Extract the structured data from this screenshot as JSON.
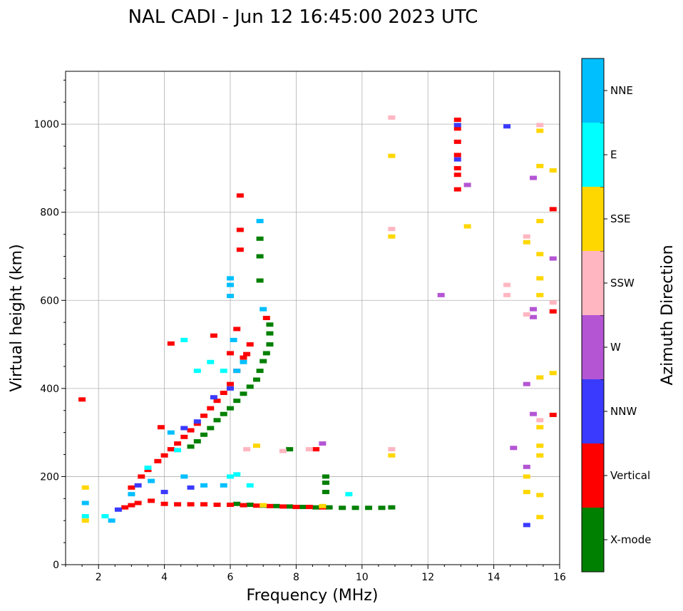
{
  "chart_data": {
    "type": "scatter",
    "title": "NAL CADI - Jun 12 16:45:00 2023 UTC",
    "xlabel": "Frequency (MHz)",
    "ylabel": "Virtual height (km)",
    "xlim": [
      1,
      16
    ],
    "ylim": [
      0,
      1120
    ],
    "xticks": [
      2,
      4,
      6,
      8,
      10,
      12,
      14,
      16
    ],
    "yticks": [
      0,
      200,
      400,
      600,
      800,
      1000
    ],
    "grid": true,
    "colorbar": {
      "title": "Azimuth Direction",
      "categories": [
        {
          "name": "X-mode",
          "color": "#008000"
        },
        {
          "name": "Vertical",
          "color": "#ff0000"
        },
        {
          "name": "NNW",
          "color": "#3a3aff"
        },
        {
          "name": "W",
          "color": "#b455d4"
        },
        {
          "name": "SSW",
          "color": "#ffb6c1"
        },
        {
          "name": "SSE",
          "color": "#ffd700"
        },
        {
          "name": "E",
          "color": "#00ffff"
        },
        {
          "name": "NNE",
          "color": "#00bfff"
        }
      ]
    },
    "series": [
      {
        "name": "X-mode",
        "points": [
          [
            4.8,
            268
          ],
          [
            5.0,
            280
          ],
          [
            5.2,
            295
          ],
          [
            5.4,
            310
          ],
          [
            5.6,
            328
          ],
          [
            5.8,
            342
          ],
          [
            6.0,
            355
          ],
          [
            6.2,
            372
          ],
          [
            6.4,
            388
          ],
          [
            6.6,
            404
          ],
          [
            6.8,
            420
          ],
          [
            6.9,
            440
          ],
          [
            7.0,
            462
          ],
          [
            7.1,
            480
          ],
          [
            7.2,
            500
          ],
          [
            7.2,
            525
          ],
          [
            7.2,
            545
          ],
          [
            6.9,
            645
          ],
          [
            6.9,
            700
          ],
          [
            6.9,
            740
          ],
          [
            6.2,
            138
          ],
          [
            6.6,
            136
          ],
          [
            7.0,
            134
          ],
          [
            7.4,
            133
          ],
          [
            7.8,
            132
          ],
          [
            8.2,
            131
          ],
          [
            8.6,
            130
          ],
          [
            9.0,
            130
          ],
          [
            9.4,
            129
          ],
          [
            9.8,
            129
          ],
          [
            10.2,
            129
          ],
          [
            10.6,
            129
          ],
          [
            10.9,
            130
          ],
          [
            8.9,
            200
          ],
          [
            8.9,
            186
          ],
          [
            8.9,
            165
          ],
          [
            7.8,
            262
          ]
        ]
      },
      {
        "name": "Vertical",
        "points": [
          [
            1.5,
            375
          ],
          [
            2.8,
            130
          ],
          [
            3.0,
            135
          ],
          [
            3.2,
            140
          ],
          [
            3.6,
            145
          ],
          [
            4.0,
            138
          ],
          [
            4.4,
            137
          ],
          [
            4.8,
            137
          ],
          [
            5.2,
            137
          ],
          [
            5.6,
            136
          ],
          [
            6.0,
            136
          ],
          [
            6.4,
            135
          ],
          [
            6.8,
            134
          ],
          [
            7.2,
            133
          ],
          [
            7.6,
            132
          ],
          [
            8.0,
            131
          ],
          [
            8.4,
            131
          ],
          [
            8.8,
            130
          ],
          [
            3.0,
            175
          ],
          [
            3.3,
            200
          ],
          [
            3.5,
            215
          ],
          [
            3.8,
            235
          ],
          [
            4.0,
            248
          ],
          [
            4.2,
            262
          ],
          [
            4.4,
            275
          ],
          [
            4.6,
            290
          ],
          [
            4.8,
            305
          ],
          [
            5.0,
            320
          ],
          [
            5.2,
            338
          ],
          [
            5.4,
            355
          ],
          [
            5.6,
            372
          ],
          [
            5.8,
            390
          ],
          [
            6.0,
            410
          ],
          [
            6.2,
            440
          ],
          [
            6.4,
            470
          ],
          [
            6.6,
            500
          ],
          [
            6.2,
            535
          ],
          [
            6.3,
            760
          ],
          [
            6.3,
            838
          ],
          [
            6.3,
            715
          ],
          [
            5.5,
            520
          ],
          [
            4.2,
            502
          ],
          [
            3.9,
            312
          ],
          [
            12.9,
            1010
          ],
          [
            12.9,
            990
          ],
          [
            12.9,
            960
          ],
          [
            12.9,
            930
          ],
          [
            12.9,
            900
          ],
          [
            12.9,
            885
          ],
          [
            12.9,
            852
          ],
          [
            15.8,
            807
          ],
          [
            15.8,
            575
          ],
          [
            15.8,
            340
          ],
          [
            6.5,
            478
          ],
          [
            6.0,
            480
          ],
          [
            7.1,
            560
          ],
          [
            8.6,
            262
          ]
        ]
      },
      {
        "name": "NNW",
        "points": [
          [
            2.6,
            125
          ],
          [
            3.2,
            180
          ],
          [
            4.6,
            310
          ],
          [
            5.0,
            325
          ],
          [
            5.5,
            380
          ],
          [
            6.0,
            400
          ],
          [
            4.0,
            165
          ],
          [
            4.8,
            175
          ],
          [
            12.9,
            998
          ],
          [
            12.9,
            920
          ],
          [
            14.4,
            995
          ],
          [
            15.0,
            90
          ]
        ]
      },
      {
        "name": "W",
        "points": [
          [
            12.4,
            612
          ],
          [
            13.2,
            862
          ],
          [
            15.2,
            878
          ],
          [
            15.2,
            580
          ],
          [
            15.2,
            562
          ],
          [
            15.0,
            410
          ],
          [
            15.2,
            342
          ],
          [
            15.0,
            222
          ],
          [
            14.6,
            265
          ],
          [
            15.8,
            695
          ],
          [
            8.8,
            275
          ]
        ]
      },
      {
        "name": "SSW",
        "points": [
          [
            10.9,
            1015
          ],
          [
            10.9,
            762
          ],
          [
            14.4,
            635
          ],
          [
            14.4,
            612
          ],
          [
            15.0,
            745
          ],
          [
            15.0,
            568
          ],
          [
            15.4,
            998
          ],
          [
            15.4,
            328
          ],
          [
            15.8,
            595
          ],
          [
            6.5,
            262
          ],
          [
            7.6,
            258
          ],
          [
            8.4,
            262
          ],
          [
            10.9,
            262
          ]
        ]
      },
      {
        "name": "SSE",
        "points": [
          [
            1.6,
            175
          ],
          [
            1.6,
            100
          ],
          [
            10.9,
            928
          ],
          [
            10.9,
            745
          ],
          [
            10.9,
            248
          ],
          [
            13.2,
            768
          ],
          [
            15.4,
            985
          ],
          [
            15.4,
            905
          ],
          [
            15.4,
            780
          ],
          [
            15.4,
            705
          ],
          [
            15.4,
            650
          ],
          [
            15.4,
            612
          ],
          [
            15.4,
            425
          ],
          [
            15.4,
            312
          ],
          [
            15.4,
            270
          ],
          [
            15.4,
            248
          ],
          [
            15.4,
            158
          ],
          [
            15.4,
            108
          ],
          [
            15.0,
            200
          ],
          [
            15.0,
            165
          ],
          [
            15.0,
            732
          ],
          [
            15.8,
            895
          ],
          [
            15.8,
            435
          ],
          [
            7.0,
            135
          ],
          [
            8.8,
            133
          ],
          [
            6.8,
            270
          ]
        ]
      },
      {
        "name": "E",
        "points": [
          [
            1.6,
            110
          ],
          [
            2.2,
            110
          ],
          [
            3.5,
            220
          ],
          [
            4.4,
            260
          ],
          [
            5.0,
            440
          ],
          [
            5.4,
            460
          ],
          [
            5.8,
            440
          ],
          [
            6.2,
            205
          ],
          [
            6.6,
            180
          ],
          [
            4.6,
            510
          ],
          [
            6.0,
            200
          ],
          [
            9.6,
            160
          ]
        ]
      },
      {
        "name": "NNE",
        "points": [
          [
            1.6,
            140
          ],
          [
            2.4,
            100
          ],
          [
            3.0,
            160
          ],
          [
            3.6,
            190
          ],
          [
            4.2,
            300
          ],
          [
            4.6,
            200
          ],
          [
            5.2,
            180
          ],
          [
            5.8,
            180
          ],
          [
            6.0,
            610
          ],
          [
            6.0,
            650
          ],
          [
            6.0,
            635
          ],
          [
            6.4,
            460
          ],
          [
            6.9,
            780
          ],
          [
            7.0,
            580
          ],
          [
            6.1,
            510
          ],
          [
            6.2,
            440
          ]
        ]
      }
    ]
  }
}
